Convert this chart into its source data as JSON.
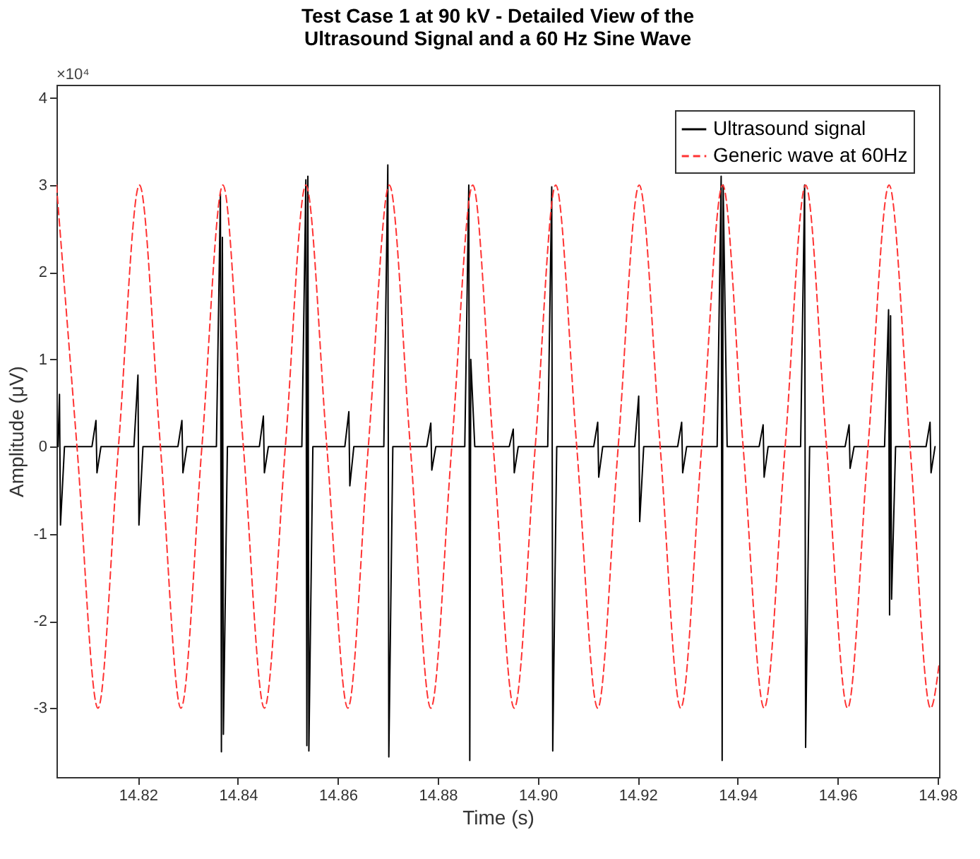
{
  "chart_data": {
    "type": "line",
    "title": "Test Case 1 at 90 kV - Detailed View of the\nUltrasound Signal and a 60 Hz Sine Wave",
    "xlabel": "Time (s)",
    "ylabel": "Amplitude (μV)",
    "annotations": [
      "×10⁴"
    ],
    "xlim": [
      14.8037,
      14.9803
    ],
    "ylim": [
      -3.79,
      4.15
    ],
    "xticks": [
      14.82,
      14.84,
      14.86,
      14.88,
      {
        "value": 14.9,
        "label": "14.90"
      },
      14.92,
      14.94,
      14.96,
      14.98
    ],
    "yticks": [
      -3,
      -2,
      -1,
      0,
      1,
      2,
      3,
      4
    ],
    "grid": false,
    "legend": "top right",
    "series": [
      {
        "name": "Ultrasound signal",
        "color": "#000000",
        "line_style": "solid",
        "x": [
          14.804,
          14.8043,
          14.8045,
          14.8053,
          14.8108,
          14.8116,
          14.8118,
          14.8126,
          14.8192,
          14.82,
          14.8202,
          14.821,
          14.828,
          14.8288,
          14.829,
          14.8298,
          14.8357,
          14.8365,
          14.8367,
          14.8369,
          14.8371,
          14.8379,
          14.8443,
          14.8451,
          14.8453,
          14.8461,
          14.8528,
          14.8536,
          14.8538,
          14.854,
          14.8542,
          14.855,
          14.8614,
          14.8622,
          14.8624,
          14.8632,
          14.8692,
          14.87,
          14.8702,
          14.871,
          14.8778,
          14.8786,
          14.8788,
          14.8796,
          14.8854,
          14.8862,
          14.8864,
          14.8866,
          14.8874,
          14.8943,
          14.8951,
          14.8953,
          14.8961,
          14.902,
          14.9028,
          14.903,
          14.9038,
          14.9112,
          14.912,
          14.9122,
          14.913,
          14.9194,
          14.9202,
          14.9204,
          14.9212,
          14.928,
          14.9288,
          14.929,
          14.9298,
          14.9359,
          14.9367,
          14.9369,
          14.9371,
          14.9379,
          14.9443,
          14.9451,
          14.9453,
          14.9461,
          14.9526,
          14.9534,
          14.9536,
          14.9544,
          14.9615,
          14.9623,
          14.9625,
          14.9633,
          14.9694,
          14.9702,
          14.9704,
          14.9706,
          14.9708,
          14.9716,
          14.9777,
          14.9785,
          14.9787,
          14.9795
        ],
        "values": [
          0,
          0.6,
          -0.9,
          0,
          0,
          0.3,
          -0.3,
          0,
          0,
          0.82,
          -0.9,
          0,
          0,
          0.3,
          -0.3,
          0,
          0,
          2.9,
          -3.5,
          2.4,
          -3.3,
          0,
          0,
          0.35,
          -0.3,
          0,
          0,
          3.06,
          -3.43,
          3.1,
          -3.49,
          0,
          0,
          0.4,
          -0.45,
          0,
          0,
          3.23,
          -3.56,
          0,
          0,
          0.27,
          -0.27,
          0,
          0,
          3.0,
          -3.6,
          1.0,
          0,
          0,
          0.2,
          -0.3,
          0,
          0,
          2.98,
          -3.49,
          0,
          0,
          0.28,
          -0.35,
          0,
          0,
          0.58,
          -0.86,
          0,
          0,
          0.28,
          -0.3,
          0,
          0,
          3.1,
          -3.6,
          3.0,
          0,
          0,
          0.25,
          -0.35,
          0,
          0,
          3.0,
          -3.45,
          0,
          0,
          0.25,
          -0.25,
          0,
          0,
          1.57,
          -1.93,
          1.5,
          -1.75,
          0,
          0,
          0.28,
          -0.3,
          0
        ]
      },
      {
        "name": "Generic wave at 60Hz",
        "color": "#ff3333",
        "line_style": "dashed",
        "x": [
          14.8037,
          14.8078,
          14.812,
          14.8161,
          14.8203,
          14.8245,
          14.8286,
          14.8328,
          14.837,
          14.8411,
          14.8453,
          14.8495,
          14.8536,
          14.8578,
          14.862,
          14.8661,
          14.8703,
          14.8745,
          14.8786,
          14.8828,
          14.887,
          14.8911,
          14.8953,
          14.8995,
          14.9036,
          14.9078,
          14.912,
          14.9161,
          14.9203,
          14.9245,
          14.9286,
          14.9328,
          14.937,
          14.9411,
          14.9453,
          14.9495,
          14.9536,
          14.9578,
          14.962,
          14.9661,
          14.9703,
          14.9745,
          14.9786,
          14.9803
        ],
        "values": [
          3,
          0,
          -3,
          0,
          3,
          0,
          -3,
          0,
          3,
          0,
          -3,
          0,
          3,
          0,
          -3,
          0,
          3,
          0,
          -3,
          0,
          3,
          0,
          -3,
          0,
          3,
          0,
          -3,
          0,
          3,
          0,
          -3,
          0,
          3,
          0,
          -3,
          0,
          3,
          0,
          -3,
          0,
          3,
          0,
          -3,
          -2.5
        ]
      }
    ]
  }
}
